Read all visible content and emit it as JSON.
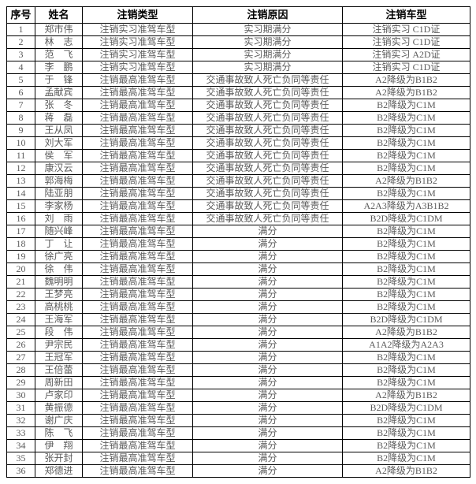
{
  "columns": [
    "序号",
    "姓名",
    "注销类型",
    "注销原因",
    "注销车型"
  ],
  "rows": [
    [
      "1",
      "郑市伟",
      "注销实习准驾车型",
      "实习期满分",
      "注销实习 C1D证"
    ],
    [
      "2",
      "林　志",
      "注销实习准驾车型",
      "实习期满分",
      "注销实习 C1D证"
    ],
    [
      "3",
      "范　飞",
      "注销实习准驾车型",
      "实习期满分",
      "注销实习 A2D证"
    ],
    [
      "4",
      "李　鹏",
      "注销实习准驾车型",
      "实习期满分",
      "注销实习 C1D证"
    ],
    [
      "5",
      "于　锋",
      "注销最高准驾车型",
      "交通事故致人死亡负同等责任",
      "A2降级为B1B2"
    ],
    [
      "6",
      "孟献宾",
      "注销最高准驾车型",
      "交通事故致人死亡负同等责任",
      "A2降级为B1B2"
    ],
    [
      "7",
      "张　冬",
      "注销最高准驾车型",
      "交通事故致人死亡负同等责任",
      "B2降级为C1M"
    ],
    [
      "8",
      "蒋　磊",
      "注销最高准驾车型",
      "交通事故致人死亡负同等责任",
      "B2降级为C1M"
    ],
    [
      "9",
      "王从凤",
      "注销最高准驾车型",
      "交通事故致人死亡负同等责任",
      "B2降级为C1M"
    ],
    [
      "10",
      "刘大军",
      "注销最高准驾车型",
      "交通事故致人死亡负同等责任",
      "B2降级为C1M"
    ],
    [
      "11",
      "侯　军",
      "注销最高准驾车型",
      "交通事故致人死亡负同等责任",
      "B2降级为C1M"
    ],
    [
      "12",
      "康汉云",
      "注销最高准驾车型",
      "交通事故致人死亡负同等责任",
      "B2降级为C1M"
    ],
    [
      "13",
      "郭海梅",
      "注销最高准驾车型",
      "交通事故致人死亡负同等责任",
      "A2降级为B1B2"
    ],
    [
      "14",
      "陆亚朋",
      "注销最高准驾车型",
      "交通事故致人死亡负同等责任",
      "B2降级为C1M"
    ],
    [
      "15",
      "李家杨",
      "注销最高准驾车型",
      "交通事故致人死亡负同等责任",
      "A2A3降级为A3B1B2"
    ],
    [
      "16",
      "刘　雨",
      "注销最高准驾车型",
      "交通事故致人死亡负同等责任",
      "B2D降级为C1DM"
    ],
    [
      "17",
      "随兴峰",
      "注销最高准驾车型",
      "满分",
      "B2降级为C1M"
    ],
    [
      "18",
      "丁　让",
      "注销最高准驾车型",
      "满分",
      "B2降级为C1M"
    ],
    [
      "19",
      "徐广亮",
      "注销最高准驾车型",
      "满分",
      "B2降级为C1M"
    ],
    [
      "20",
      "徐　伟",
      "注销最高准驾车型",
      "满分",
      "B2降级为C1M"
    ],
    [
      "21",
      "魏明明",
      "注销最高准驾车型",
      "满分",
      "B2降级为C1M"
    ],
    [
      "22",
      "王梦亮",
      "注销最高准驾车型",
      "满分",
      "B2降级为C1M"
    ],
    [
      "23",
      "高桃桃",
      "注销最高准驾车型",
      "满分",
      "B2降级为C1M"
    ],
    [
      "24",
      "王海军",
      "注销最高准驾车型",
      "满分",
      "B2D降级为C1DM"
    ],
    [
      "25",
      "段　伟",
      "注销最高准驾车型",
      "满分",
      "A2降级为B1B2"
    ],
    [
      "26",
      "尹宗民",
      "注销最高准驾车型",
      "满分",
      "A1A2降级为A2A3"
    ],
    [
      "27",
      "王冠军",
      "注销最高准驾车型",
      "满分",
      "B2降级为C1M"
    ],
    [
      "28",
      "王倍蕾",
      "注销最高准驾车型",
      "满分",
      "B2降级为C1M"
    ],
    [
      "29",
      "周新田",
      "注销最高准驾车型",
      "满分",
      "B2降级为C1M"
    ],
    [
      "30",
      "卢家印",
      "注销最高准驾车型",
      "满分",
      "A2降级为B1B2"
    ],
    [
      "31",
      "黄振德",
      "注销最高准驾车型",
      "满分",
      "B2D降级为C1DM"
    ],
    [
      "32",
      "谢广庆",
      "注销最高准驾车型",
      "满分",
      "B2降级为C1M"
    ],
    [
      "33",
      "陈　飞",
      "注销最高准驾车型",
      "满分",
      "B2降级为C1M"
    ],
    [
      "34",
      "伊　翔",
      "注销最高准驾车型",
      "满分",
      "B2降级为C1M"
    ],
    [
      "35",
      "张开封",
      "注销最高准驾车型",
      "满分",
      "B2降级为C1M"
    ],
    [
      "36",
      "郑德进",
      "注销最高准驾车型",
      "满分",
      "A2降级为B1B2"
    ]
  ]
}
